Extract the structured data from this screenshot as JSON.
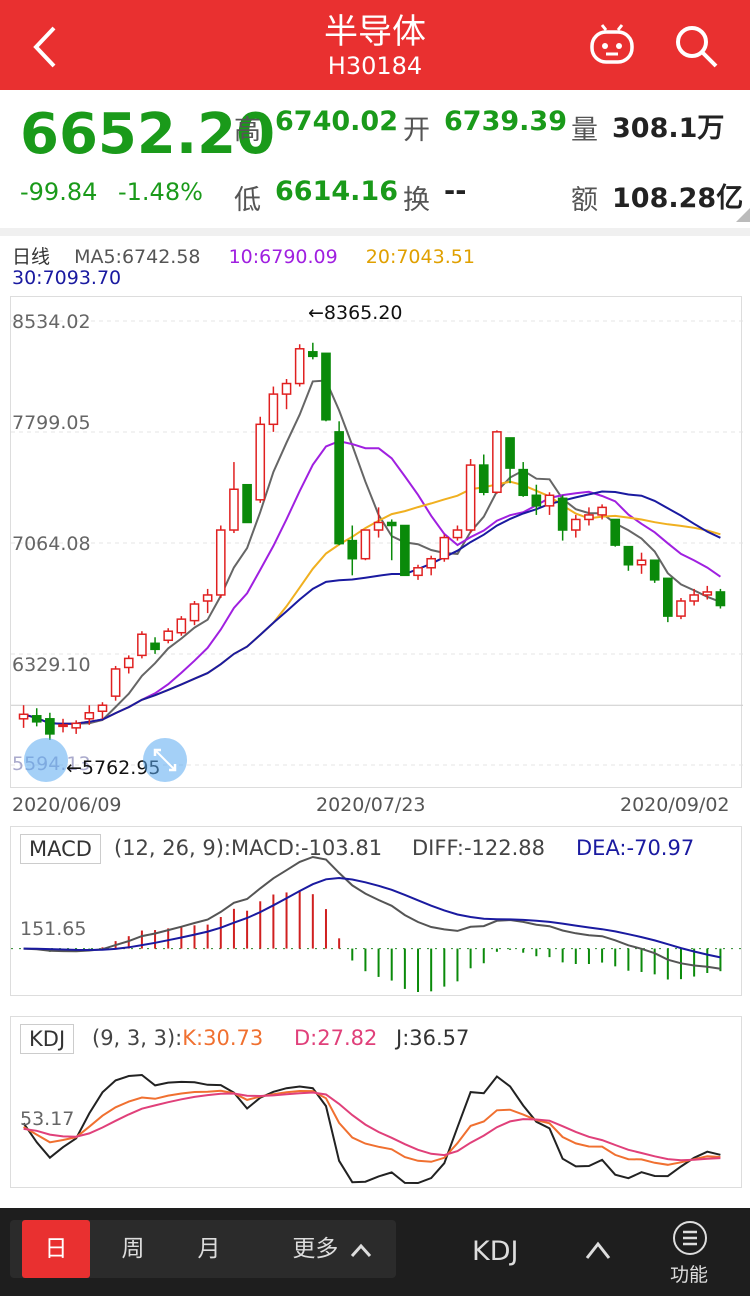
{
  "header": {
    "title": "半导体",
    "code": "H30184"
  },
  "quote": {
    "price": "6652.20",
    "change": "-99.84",
    "change_pct": "-1.48%",
    "high_label": "高",
    "high": "6740.02",
    "open_label": "开",
    "open": "6739.39",
    "volume_label": "量",
    "volume": "308.1万",
    "low_label": "低",
    "low": "6614.16",
    "turnover_label": "换",
    "turnover": "--",
    "amount_label": "额",
    "amount": "108.28亿"
  },
  "ma": {
    "period_label": "日线",
    "ma5": "MA5:6742.58",
    "ma10": "10:6790.09",
    "ma20": "20:7043.51",
    "ma30": "30:7093.70",
    "ma5_color": "#666666",
    "ma10_color": "#a020e0",
    "ma20_color": "#f0b020",
    "ma30_color": "#1a1aa0"
  },
  "chart": {
    "y_labels": [
      "8534.02",
      "7799.05",
      "7064.08",
      "6329.10",
      "5594.13"
    ],
    "max_annotation": "←8365.20",
    "min_annotation": "←5762.95",
    "dates": [
      "2020/06/09",
      "2020/07/23",
      "2020/09/02"
    ],
    "up_color": "#e02020",
    "down_color": "#0a8a0a"
  },
  "macd": {
    "name": "MACD",
    "params": "(12, 26, 9):",
    "macd": "MACD:-103.81",
    "diff": "DIFF:-122.88",
    "dea": "DEA:-70.97",
    "axis_value": "151.65"
  },
  "kdj": {
    "name": "KDJ",
    "params": "(9, 3, 3):",
    "k": "K:30.73",
    "d": "D:27.82",
    "j": "J:36.57",
    "axis_value": "53.17",
    "k_color": "#f07030",
    "d_color": "#e0407a",
    "j_color": "#222222"
  },
  "bottom_bar": {
    "tabs": [
      "日",
      "周",
      "月"
    ],
    "more": "更多",
    "indicator": "KDJ",
    "function_label": "功能"
  },
  "icons": {
    "back": "back-arrow-icon",
    "robot": "robot-icon",
    "search": "search-icon",
    "zoom_out": "zoom-out-icon",
    "zoom_in": "zoom-in-icon",
    "caret": "chevron-up-icon",
    "menu": "menu-icon"
  },
  "chart_data": {
    "type": "candlestick",
    "x_start": "2020/06/09",
    "x_mid": "2020/07/23",
    "x_end": "2020/09/02",
    "y_ticks": [
      8534.02,
      7799.05,
      7064.08,
      6329.1,
      5594.13
    ],
    "ylim": [
      5594.13,
      8534.02
    ],
    "highest": 8365.2,
    "lowest": 5762.95,
    "last_close": 6652.2,
    "series_ohlc_approx": [
      [
        5900,
        5990,
        5840,
        5930
      ],
      [
        5920,
        5970,
        5850,
        5880
      ],
      [
        5900,
        5940,
        5760,
        5800
      ],
      [
        5850,
        5900,
        5810,
        5860
      ],
      [
        5840,
        5890,
        5800,
        5870
      ],
      [
        5900,
        5990,
        5860,
        5940
      ],
      [
        5950,
        6010,
        5900,
        5990
      ],
      [
        6050,
        6250,
        6020,
        6230
      ],
      [
        6240,
        6320,
        6200,
        6300
      ],
      [
        6320,
        6480,
        6300,
        6460
      ],
      [
        6400,
        6440,
        6330,
        6360
      ],
      [
        6420,
        6500,
        6400,
        6480
      ],
      [
        6470,
        6580,
        6450,
        6560
      ],
      [
        6550,
        6680,
        6520,
        6660
      ],
      [
        6680,
        6760,
        6600,
        6720
      ],
      [
        6720,
        7180,
        6700,
        7150
      ],
      [
        7150,
        7600,
        7130,
        7420
      ],
      [
        7450,
        7300,
        7280,
        7200
      ],
      [
        7350,
        7900,
        7330,
        7850
      ],
      [
        7850,
        8100,
        7800,
        8050
      ],
      [
        8050,
        8150,
        7950,
        8120
      ],
      [
        8120,
        8380,
        8100,
        8350
      ],
      [
        8330,
        8390,
        8280,
        8300
      ],
      [
        8320,
        8180,
        7870,
        7880
      ],
      [
        7800,
        7870,
        7050,
        7060
      ],
      [
        7080,
        7180,
        6850,
        6960
      ],
      [
        6960,
        7150,
        6950,
        7150
      ],
      [
        7150,
        7300,
        7100,
        7200
      ],
      [
        7200,
        7220,
        6950,
        7180
      ],
      [
        7180,
        7160,
        6850,
        6850
      ],
      [
        6850,
        6920,
        6820,
        6900
      ],
      [
        6900,
        6980,
        6850,
        6960
      ],
      [
        6960,
        7120,
        6940,
        7100
      ],
      [
        7100,
        7180,
        7080,
        7150
      ],
      [
        7150,
        7620,
        7130,
        7580
      ],
      [
        7580,
        7650,
        7380,
        7400
      ],
      [
        7400,
        7810,
        7390,
        7800
      ],
      [
        7760,
        7720,
        7460,
        7560
      ],
      [
        7550,
        7600,
        7370,
        7380
      ],
      [
        7380,
        7450,
        7250,
        7310
      ],
      [
        7310,
        7400,
        7250,
        7380
      ],
      [
        7360,
        7380,
        7080,
        7150
      ],
      [
        7150,
        7250,
        7100,
        7220
      ],
      [
        7220,
        7300,
        7180,
        7250
      ],
      [
        7250,
        7320,
        7220,
        7300
      ],
      [
        7220,
        7200,
        7040,
        7050
      ],
      [
        7040,
        7000,
        6880,
        6920
      ],
      [
        6920,
        7000,
        6860,
        6950
      ],
      [
        6950,
        6940,
        6800,
        6820
      ],
      [
        6830,
        6820,
        6540,
        6580
      ],
      [
        6580,
        6700,
        6560,
        6680
      ],
      [
        6680,
        6760,
        6650,
        6720
      ],
      [
        6720,
        6780,
        6690,
        6740
      ],
      [
        6740,
        6760,
        6630,
        6650
      ]
    ]
  }
}
